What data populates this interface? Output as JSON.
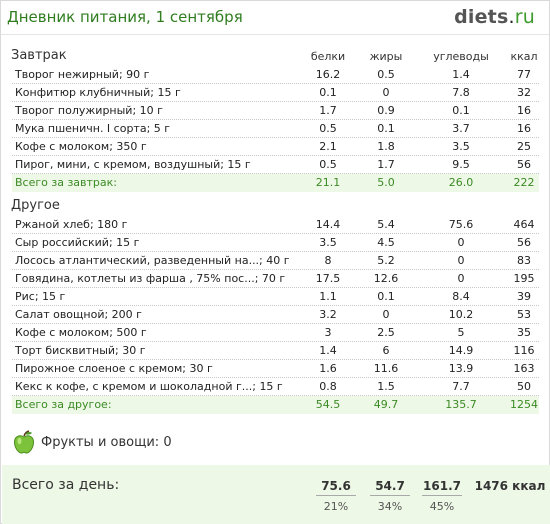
{
  "header": {
    "title": "Дневник питания, 1 сентября",
    "brand_name": "diets",
    "brand_dot": ".",
    "brand_tld": "ru"
  },
  "columns": [
    "белки",
    "жиры",
    "углеводы",
    "ккал"
  ],
  "sections": [
    {
      "title": "Завтрак",
      "items": [
        {
          "name": "Творог нежирный; 90 г",
          "protein": "16.2",
          "fat": "0.5",
          "carbs": "1.4",
          "kcal": "77"
        },
        {
          "name": "Конфитюр клубничный; 15 г",
          "protein": "0.1",
          "fat": "0",
          "carbs": "7.8",
          "kcal": "32"
        },
        {
          "name": "Творог полужирный; 10 г",
          "protein": "1.7",
          "fat": "0.9",
          "carbs": "0.1",
          "kcal": "16"
        },
        {
          "name": "Мука пшеничн. I сорта; 5 г",
          "protein": "0.5",
          "fat": "0.1",
          "carbs": "3.7",
          "kcal": "16"
        },
        {
          "name": "Кофе с молоком; 350 г",
          "protein": "2.1",
          "fat": "1.8",
          "carbs": "3.5",
          "kcal": "25"
        },
        {
          "name": "Пирог, мини, с кремом, воздушный; 15 г",
          "protein": "0.5",
          "fat": "1.7",
          "carbs": "9.5",
          "kcal": "56"
        }
      ],
      "total": {
        "label": "Всего за завтрак:",
        "protein": "21.1",
        "fat": "5.0",
        "carbs": "26.0",
        "kcal": "222"
      }
    },
    {
      "title": "Другое",
      "items": [
        {
          "name": "Ржаной хлеб; 180 г",
          "protein": "14.4",
          "fat": "5.4",
          "carbs": "75.6",
          "kcal": "464"
        },
        {
          "name": "Сыр российский; 15 г",
          "protein": "3.5",
          "fat": "4.5",
          "carbs": "0",
          "kcal": "56"
        },
        {
          "name": "Лосось атлантический, разведенный на...; 40 г",
          "protein": "8",
          "fat": "5.2",
          "carbs": "0",
          "kcal": "83"
        },
        {
          "name": "Говядина, котлеты из фарша , 75% пос...; 70 г",
          "protein": "17.5",
          "fat": "12.6",
          "carbs": "0",
          "kcal": "195"
        },
        {
          "name": "Рис; 15 г",
          "protein": "1.1",
          "fat": "0.1",
          "carbs": "8.4",
          "kcal": "39"
        },
        {
          "name": "Салат овощной; 200 г",
          "protein": "3.2",
          "fat": "0",
          "carbs": "10.2",
          "kcal": "53"
        },
        {
          "name": "Кофе с молоком; 500 г",
          "protein": "3",
          "fat": "2.5",
          "carbs": "5",
          "kcal": "35"
        },
        {
          "name": "Торт бисквитный; 30 г",
          "protein": "1.4",
          "fat": "6",
          "carbs": "14.9",
          "kcal": "116"
        },
        {
          "name": "Пирожное слоеное с кремом; 30 г",
          "protein": "1.6",
          "fat": "11.6",
          "carbs": "13.9",
          "kcal": "163"
        },
        {
          "name": "Кекс к кофе, с кремом и шоколадной г...; 15 г",
          "protein": "0.8",
          "fat": "1.5",
          "carbs": "7.7",
          "kcal": "50"
        }
      ],
      "total": {
        "label": "Всего за другое:",
        "protein": "54.5",
        "fat": "49.7",
        "carbs": "135.7",
        "kcal": "1254"
      }
    }
  ],
  "fruits": {
    "label": "Фрукты и овощи: 0",
    "icon": "green-apple-icon"
  },
  "day_total": {
    "label": "Всего за день:",
    "protein": "75.6",
    "fat": "54.7",
    "carbs": "161.7",
    "kcal": "1476 ккал",
    "protein_pct": "21%",
    "fat_pct": "34%",
    "carbs_pct": "45%"
  },
  "colors": {
    "accent_green": "#3b8a25",
    "title_green": "#2f7d1f",
    "total_bg": "#eef8e6"
  }
}
